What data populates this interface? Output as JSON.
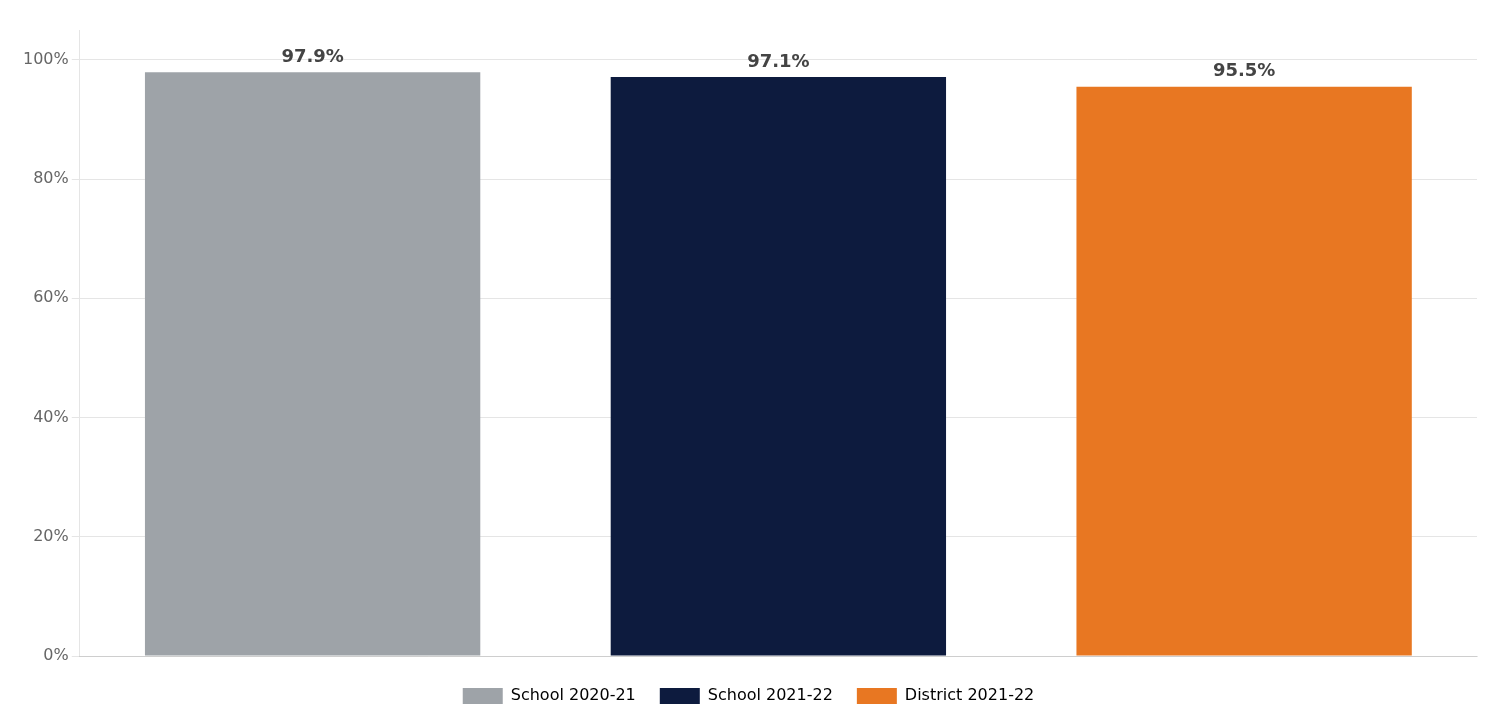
{
  "chart_data": {
    "type": "bar",
    "categories": [
      "School 2020-21",
      "School 2021-22",
      "District 2021-22"
    ],
    "values": [
      97.9,
      97.1,
      95.5
    ],
    "value_labels": [
      "97.9%",
      "97.1%",
      "95.5%"
    ],
    "colors": [
      "#9ea3a8",
      "#0d1b3e",
      "#e87722"
    ],
    "ylim": [
      0,
      105
    ],
    "yticks": [
      {
        "value": 0,
        "label": "0%"
      },
      {
        "value": 20,
        "label": "20%"
      },
      {
        "value": 40,
        "label": "40%"
      },
      {
        "value": 60,
        "label": "60%"
      },
      {
        "value": 80,
        "label": "80%"
      },
      {
        "value": 100,
        "label": "100%"
      }
    ],
    "grid": true,
    "legend": "bottom",
    "data_labels": true,
    "tick_labels": "y"
  }
}
